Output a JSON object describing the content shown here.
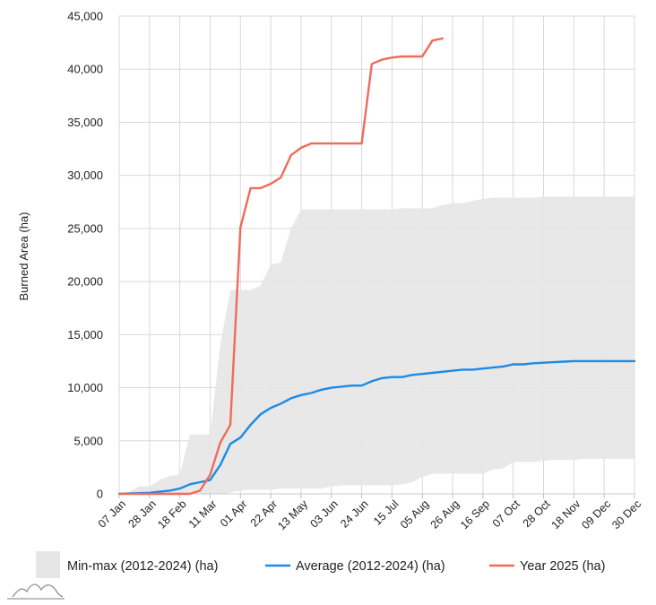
{
  "chart_data": {
    "type": "line",
    "ylabel": "Burned Area (ha)",
    "ylim": [
      0,
      45000
    ],
    "y_ticks": [
      "0",
      "5,000",
      "10,000",
      "15,000",
      "20,000",
      "25,000",
      "30,000",
      "35,000",
      "40,000",
      "45,000"
    ],
    "x_ticks": [
      "07 Jan",
      "28 Jan",
      "18 Feb",
      "11 Mar",
      "01 Apr",
      "22 Apr",
      "13 May",
      "03 Jun",
      "24 Jun",
      "15 Jul",
      "05 Aug",
      "26 Aug",
      "16 Sep",
      "07 Oct",
      "28 Oct",
      "18 Nov",
      "09 Dec",
      "30 Dec"
    ],
    "x": [
      "07 Jan",
      "14 Jan",
      "21 Jan",
      "28 Jan",
      "04 Feb",
      "11 Feb",
      "18 Feb",
      "25 Feb",
      "04 Mar",
      "11 Mar",
      "18 Mar",
      "25 Mar",
      "01 Apr",
      "08 Apr",
      "15 Apr",
      "22 Apr",
      "29 Apr",
      "06 May",
      "13 May",
      "20 May",
      "27 May",
      "03 Jun",
      "10 Jun",
      "17 Jun",
      "24 Jun",
      "01 Jul",
      "08 Jul",
      "15 Jul",
      "22 Jul",
      "29 Jul",
      "05 Aug",
      "12 Aug",
      "19 Aug",
      "26 Aug",
      "02 Sep",
      "09 Sep",
      "16 Sep",
      "23 Sep",
      "30 Sep",
      "07 Oct",
      "14 Oct",
      "21 Oct",
      "28 Oct",
      "04 Nov",
      "11 Nov",
      "18 Nov",
      "25 Nov",
      "02 Dec",
      "09 Dec",
      "16 Dec",
      "23 Dec",
      "30 Dec"
    ],
    "series": [
      {
        "name": "Min-max (2012-2024) (ha)",
        "kind": "band",
        "color": "#e6e6e6",
        "min": [
          0,
          0,
          0,
          0,
          0,
          0,
          0,
          0,
          0,
          0,
          0,
          100,
          300,
          400,
          400,
          400,
          500,
          500,
          500,
          500,
          500,
          700,
          800,
          800,
          800,
          800,
          800,
          800,
          900,
          1100,
          1600,
          1900,
          1900,
          1900,
          1900,
          1900,
          1900,
          2300,
          2400,
          3000,
          3000,
          3000,
          3100,
          3200,
          3200,
          3200,
          3300,
          3300,
          3300,
          3300,
          3300,
          3300
        ],
        "max": [
          0,
          200,
          700,
          700,
          1300,
          1700,
          1800,
          5600,
          5600,
          5600,
          14000,
          19200,
          19200,
          19200,
          19600,
          21600,
          21800,
          25000,
          26800,
          26800,
          26800,
          26800,
          26800,
          26800,
          26800,
          26800,
          26800,
          26800,
          26900,
          26900,
          26900,
          26900,
          27200,
          27400,
          27400,
          27600,
          27800,
          27900,
          27900,
          27900,
          27900,
          27900,
          28000,
          28000,
          28000,
          28000,
          28000,
          28000,
          28000,
          28000,
          28000,
          28000
        ]
      },
      {
        "name": "Average (2012-2024) (ha)",
        "kind": "line",
        "color": "#1a8be6",
        "values": [
          0,
          30,
          70,
          100,
          200,
          300,
          500,
          900,
          1100,
          1300,
          2700,
          4700,
          5300,
          6500,
          7500,
          8100,
          8500,
          9000,
          9300,
          9500,
          9800,
          10000,
          10100,
          10200,
          10200,
          10600,
          10900,
          11000,
          11000,
          11200,
          11300,
          11400,
          11500,
          11600,
          11700,
          11700,
          11800,
          11900,
          12000,
          12200,
          12200,
          12300,
          12350,
          12400,
          12450,
          12500,
          12500,
          12500,
          12500,
          12500,
          12500,
          12500
        ]
      },
      {
        "name": "Year 2025 (ha)",
        "kind": "line",
        "color": "#ef6b5b",
        "values": [
          0,
          0,
          0,
          0,
          0,
          0,
          0,
          0,
          300,
          1800,
          4800,
          6500,
          25100,
          28800,
          28800,
          29200,
          29800,
          31900,
          32600,
          33000,
          33000,
          33000,
          33000,
          33000,
          33000,
          40500,
          40900,
          41100,
          41200,
          41200,
          41200,
          42700,
          42900,
          null,
          null,
          null,
          null,
          null,
          null,
          null,
          null,
          null,
          null,
          null,
          null,
          null,
          null,
          null,
          null,
          null,
          null,
          null
        ]
      }
    ],
    "grid": true,
    "legend": "bottom"
  }
}
